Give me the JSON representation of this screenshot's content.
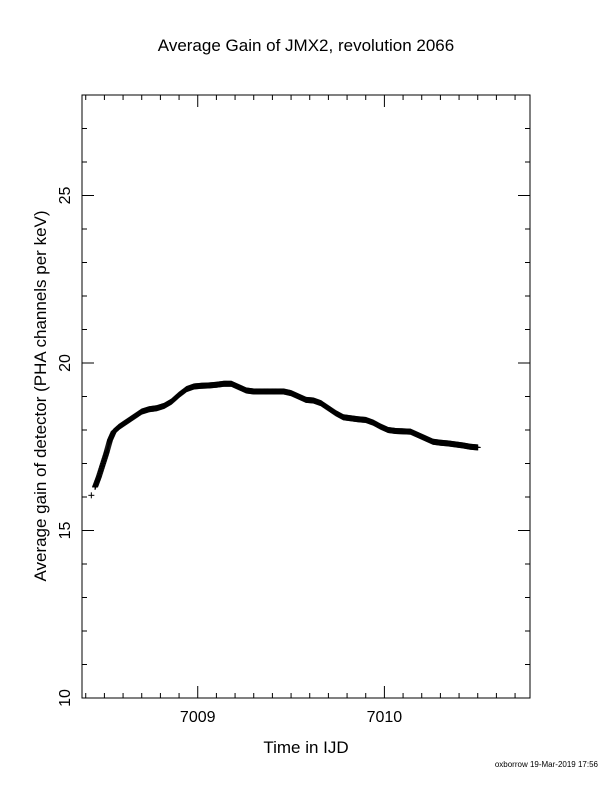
{
  "chart_data": {
    "type": "scatter",
    "title": "Average Gain of JMX2, revolution 2066",
    "xlabel": "Time in IJD",
    "ylabel": "Average gain of detector (PHA channels per keV)",
    "xlim": [
      7008.38,
      7010.78
    ],
    "ylim": [
      10,
      28
    ],
    "xticks_major": [
      7009,
      7010
    ],
    "xtick_labels": [
      "7009",
      "7010"
    ],
    "yticks_major": [
      10,
      15,
      20,
      25
    ],
    "ytick_labels": [
      "10",
      "15",
      "20",
      "25"
    ],
    "grid": false,
    "marker": "plus",
    "series": [
      {
        "x": [
          7008.43,
          7008.45,
          7008.47,
          7008.49,
          7008.51,
          7008.53,
          7008.55,
          7008.58,
          7008.62,
          7008.66,
          7008.7,
          7008.74,
          7008.78,
          7008.82,
          7008.86,
          7008.9,
          7008.94,
          7008.98,
          7009.02,
          7009.06,
          7009.1,
          7009.14,
          7009.18,
          7009.22,
          7009.26,
          7009.3,
          7009.34,
          7009.38,
          7009.42,
          7009.46,
          7009.5,
          7009.54,
          7009.58,
          7009.62,
          7009.66,
          7009.7,
          7009.74,
          7009.78,
          7009.82,
          7009.86,
          7009.9,
          7009.94,
          7009.98,
          7010.02,
          7010.06,
          7010.1,
          7010.14,
          7010.18,
          7010.22,
          7010.26,
          7010.3,
          7010.34,
          7010.38,
          7010.42,
          7010.46,
          7010.5
        ],
        "y": [
          16.05,
          16.3,
          16.6,
          16.95,
          17.3,
          17.7,
          17.95,
          18.1,
          18.25,
          18.4,
          18.55,
          18.62,
          18.65,
          18.72,
          18.85,
          19.05,
          19.22,
          19.3,
          19.32,
          19.33,
          19.35,
          19.38,
          19.38,
          19.28,
          19.18,
          19.15,
          19.15,
          19.15,
          19.15,
          19.15,
          19.1,
          19.0,
          18.9,
          18.88,
          18.8,
          18.65,
          18.5,
          18.38,
          18.35,
          18.32,
          18.3,
          18.22,
          18.1,
          18.0,
          17.97,
          17.96,
          17.95,
          17.85,
          17.75,
          17.65,
          17.62,
          17.6,
          17.57,
          17.54,
          17.5,
          17.48
        ]
      }
    ]
  },
  "footer": "oxborrow 19-Mar-2019 17:56"
}
